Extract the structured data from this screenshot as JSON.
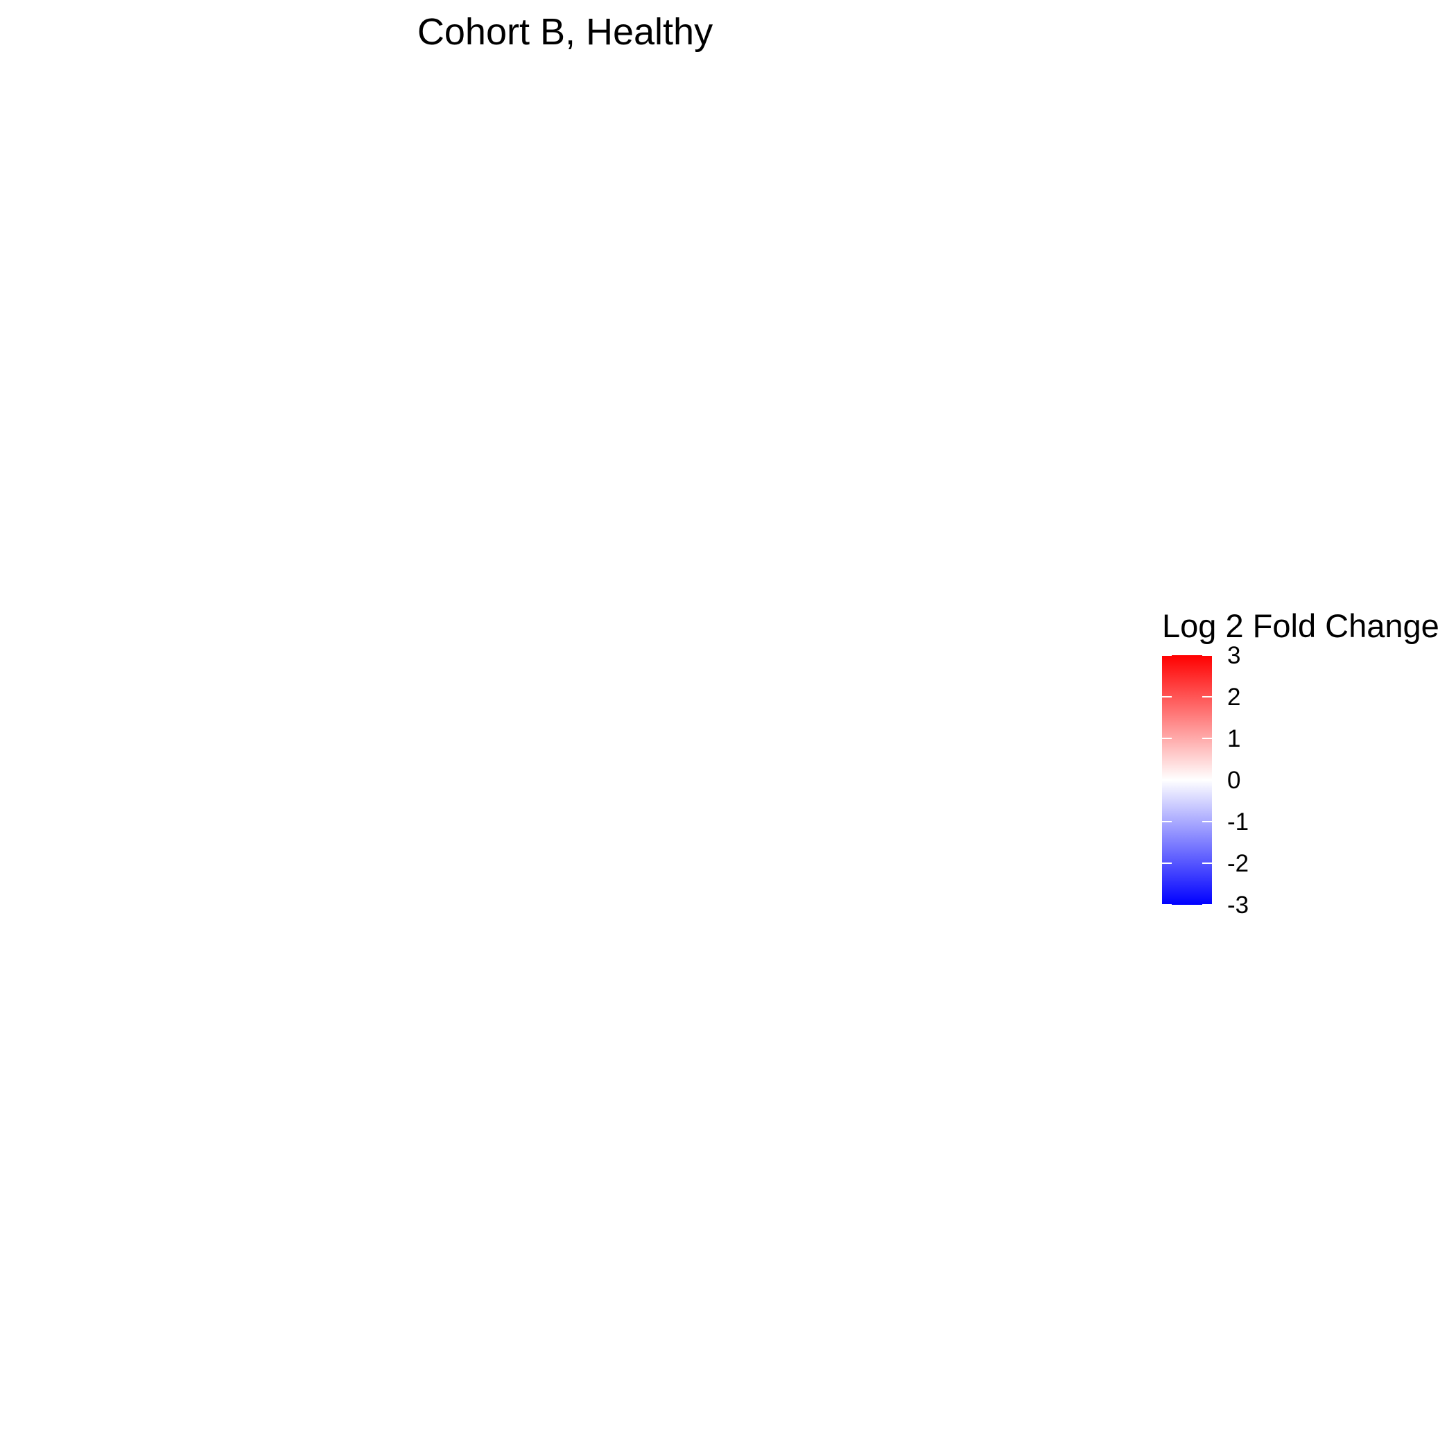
{
  "chart_data": {
    "type": "heatmap",
    "title": "Cohort B, Healthy",
    "legend": {
      "title": "Log 2 Fold Change",
      "placement": "right",
      "limits": [
        -3,
        3
      ],
      "ticks": [
        3,
        2,
        1,
        0,
        -1,
        -2,
        -3
      ],
      "low_color": "#0000ff",
      "mid_color": "#ffffff",
      "high_color": "#ff0000"
    },
    "cells": []
  }
}
